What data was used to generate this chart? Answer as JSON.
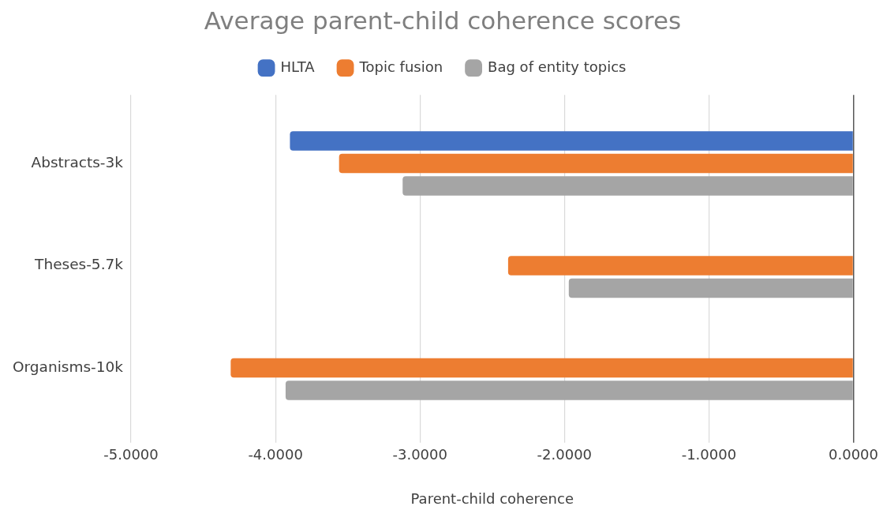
{
  "chart_data": {
    "type": "bar",
    "orientation": "horizontal",
    "title": "Average parent-child coherence scores",
    "xlabel": "Parent-child coherence",
    "categories": [
      "Abstracts-3k",
      "Theses-5.7k",
      "Organisms-10k"
    ],
    "series": [
      {
        "name": "HLTA",
        "color": "#4472c4",
        "values": [
          -3.9,
          null,
          null
        ]
      },
      {
        "name": "Topic fusion",
        "color": "#ed7d31",
        "values": [
          -3.56,
          -2.39,
          -4.31
        ]
      },
      {
        "name": "Bag of entity topics",
        "color": "#a5a5a5",
        "values": [
          -3.12,
          -1.97,
          -3.93
        ]
      }
    ],
    "xlim": [
      -5,
      0
    ],
    "xticks": [
      {
        "value": -5,
        "label": "-5.0000"
      },
      {
        "value": -4,
        "label": "-4.0000"
      },
      {
        "value": -3,
        "label": "-3.0000"
      },
      {
        "value": -2,
        "label": "-2.0000"
      },
      {
        "value": -1,
        "label": "-1.0000"
      },
      {
        "value": 0,
        "label": "0.0000"
      }
    ],
    "grid": "x",
    "legend": "top"
  }
}
